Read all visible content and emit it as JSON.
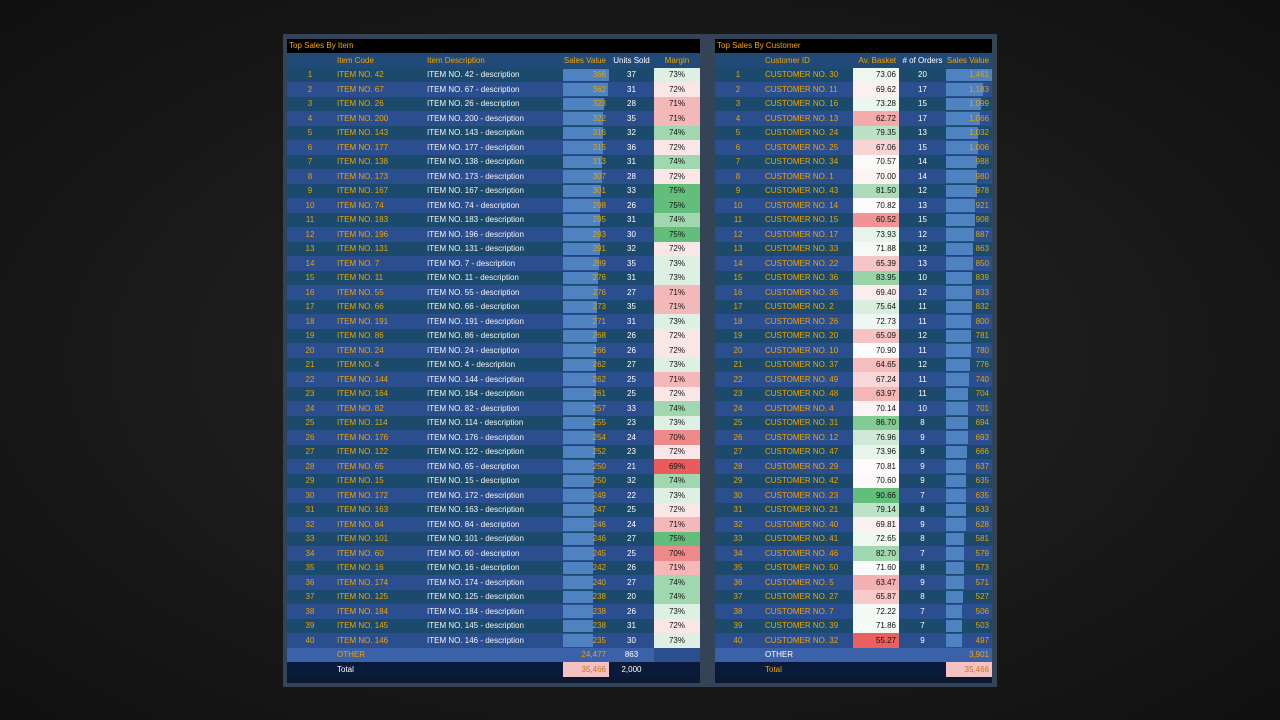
{
  "items_panel": {
    "title": "Top Sales By Item",
    "headers": {
      "code": "Item Code",
      "description": "Item Description",
      "sales_value": "Sales Value",
      "units_sold": "Units Sold",
      "margin": "Margin"
    },
    "rows": [
      {
        "rank": "1",
        "code": "ITEM NO. 42",
        "description": "ITEM NO. 42 - description",
        "sales": "366",
        "units": "37",
        "margin": "73%"
      },
      {
        "rank": "2",
        "code": "ITEM NO. 67",
        "description": "ITEM NO. 67 - description",
        "sales": "362",
        "units": "31",
        "margin": "72%"
      },
      {
        "rank": "3",
        "code": "ITEM NO. 26",
        "description": "ITEM NO. 26 - description",
        "sales": "323",
        "units": "28",
        "margin": "71%"
      },
      {
        "rank": "4",
        "code": "ITEM NO. 200",
        "description": "ITEM NO. 200 - description",
        "sales": "322",
        "units": "35",
        "margin": "71%"
      },
      {
        "rank": "5",
        "code": "ITEM NO. 143",
        "description": "ITEM NO. 143 - description",
        "sales": "316",
        "units": "32",
        "margin": "74%"
      },
      {
        "rank": "6",
        "code": "ITEM NO. 177",
        "description": "ITEM NO. 177 - description",
        "sales": "315",
        "units": "36",
        "margin": "72%"
      },
      {
        "rank": "7",
        "code": "ITEM NO. 138",
        "description": "ITEM NO. 138 - description",
        "sales": "313",
        "units": "31",
        "margin": "74%"
      },
      {
        "rank": "8",
        "code": "ITEM NO. 173",
        "description": "ITEM NO. 173 - description",
        "sales": "307",
        "units": "28",
        "margin": "72%"
      },
      {
        "rank": "9",
        "code": "ITEM NO. 167",
        "description": "ITEM NO. 167 - description",
        "sales": "301",
        "units": "33",
        "margin": "75%"
      },
      {
        "rank": "10",
        "code": "ITEM NO. 74",
        "description": "ITEM NO. 74 - description",
        "sales": "298",
        "units": "26",
        "margin": "75%"
      },
      {
        "rank": "11",
        "code": "ITEM NO. 183",
        "description": "ITEM NO. 183 - description",
        "sales": "295",
        "units": "31",
        "margin": "74%"
      },
      {
        "rank": "12",
        "code": "ITEM NO. 196",
        "description": "ITEM NO. 196 - description",
        "sales": "293",
        "units": "30",
        "margin": "75%"
      },
      {
        "rank": "13",
        "code": "ITEM NO. 131",
        "description": "ITEM NO. 131 - description",
        "sales": "291",
        "units": "32",
        "margin": "72%"
      },
      {
        "rank": "14",
        "code": "ITEM NO. 7",
        "description": "ITEM NO. 7 - description",
        "sales": "289",
        "units": "35",
        "margin": "73%"
      },
      {
        "rank": "15",
        "code": "ITEM NO. 11",
        "description": "ITEM NO. 11 - description",
        "sales": "276",
        "units": "31",
        "margin": "73%"
      },
      {
        "rank": "16",
        "code": "ITEM NO. 55",
        "description": "ITEM NO. 55 - description",
        "sales": "276",
        "units": "27",
        "margin": "71%"
      },
      {
        "rank": "17",
        "code": "ITEM NO. 66",
        "description": "ITEM NO. 66 - description",
        "sales": "273",
        "units": "35",
        "margin": "71%"
      },
      {
        "rank": "18",
        "code": "ITEM NO. 191",
        "description": "ITEM NO. 191 - description",
        "sales": "271",
        "units": "31",
        "margin": "73%"
      },
      {
        "rank": "19",
        "code": "ITEM NO. 86",
        "description": "ITEM NO. 86 - description",
        "sales": "268",
        "units": "26",
        "margin": "72%"
      },
      {
        "rank": "20",
        "code": "ITEM NO. 24",
        "description": "ITEM NO. 24 - description",
        "sales": "266",
        "units": "26",
        "margin": "72%"
      },
      {
        "rank": "21",
        "code": "ITEM NO. 4",
        "description": "ITEM NO. 4 - description",
        "sales": "262",
        "units": "27",
        "margin": "73%"
      },
      {
        "rank": "22",
        "code": "ITEM NO. 144",
        "description": "ITEM NO. 144 - description",
        "sales": "262",
        "units": "25",
        "margin": "71%"
      },
      {
        "rank": "23",
        "code": "ITEM NO. 164",
        "description": "ITEM NO. 164 - description",
        "sales": "261",
        "units": "25",
        "margin": "72%"
      },
      {
        "rank": "24",
        "code": "ITEM NO. 82",
        "description": "ITEM NO. 82 - description",
        "sales": "257",
        "units": "33",
        "margin": "74%"
      },
      {
        "rank": "25",
        "code": "ITEM NO. 114",
        "description": "ITEM NO. 114 - description",
        "sales": "255",
        "units": "23",
        "margin": "73%"
      },
      {
        "rank": "26",
        "code": "ITEM NO. 176",
        "description": "ITEM NO. 176 - description",
        "sales": "254",
        "units": "24",
        "margin": "70%"
      },
      {
        "rank": "27",
        "code": "ITEM NO. 122",
        "description": "ITEM NO. 122 - description",
        "sales": "252",
        "units": "23",
        "margin": "72%"
      },
      {
        "rank": "28",
        "code": "ITEM NO. 65",
        "description": "ITEM NO. 65 - description",
        "sales": "250",
        "units": "21",
        "margin": "69%"
      },
      {
        "rank": "29",
        "code": "ITEM NO. 15",
        "description": "ITEM NO. 15 - description",
        "sales": "250",
        "units": "32",
        "margin": "74%"
      },
      {
        "rank": "30",
        "code": "ITEM NO. 172",
        "description": "ITEM NO. 172 - description",
        "sales": "249",
        "units": "22",
        "margin": "73%"
      },
      {
        "rank": "31",
        "code": "ITEM NO. 163",
        "description": "ITEM NO. 163 - description",
        "sales": "247",
        "units": "25",
        "margin": "72%"
      },
      {
        "rank": "32",
        "code": "ITEM NO. 84",
        "description": "ITEM NO. 84 - description",
        "sales": "246",
        "units": "24",
        "margin": "71%"
      },
      {
        "rank": "33",
        "code": "ITEM NO. 101",
        "description": "ITEM NO. 101 - description",
        "sales": "246",
        "units": "27",
        "margin": "75%"
      },
      {
        "rank": "34",
        "code": "ITEM NO. 60",
        "description": "ITEM NO. 60 - description",
        "sales": "245",
        "units": "25",
        "margin": "70%"
      },
      {
        "rank": "35",
        "code": "ITEM NO. 16",
        "description": "ITEM NO. 16 - description",
        "sales": "242",
        "units": "26",
        "margin": "71%"
      },
      {
        "rank": "36",
        "code": "ITEM NO. 174",
        "description": "ITEM NO. 174 - description",
        "sales": "240",
        "units": "27",
        "margin": "74%"
      },
      {
        "rank": "37",
        "code": "ITEM NO. 125",
        "description": "ITEM NO. 125 - description",
        "sales": "238",
        "units": "20",
        "margin": "74%"
      },
      {
        "rank": "38",
        "code": "ITEM NO. 184",
        "description": "ITEM NO. 184 - description",
        "sales": "238",
        "units": "26",
        "margin": "73%"
      },
      {
        "rank": "39",
        "code": "ITEM NO. 145",
        "description": "ITEM NO. 145 - description",
        "sales": "238",
        "units": "31",
        "margin": "72%"
      },
      {
        "rank": "40",
        "code": "ITEM NO. 146",
        "description": "ITEM NO. 146 - description",
        "sales": "235",
        "units": "30",
        "margin": "73%"
      }
    ],
    "other": {
      "label": "OTHER",
      "sales": "24,477",
      "units": "863"
    },
    "total": {
      "label": "Total",
      "sales": "35,466",
      "units": "2,000"
    }
  },
  "customers_panel": {
    "title": "Top Sales By Customer",
    "headers": {
      "customer": "Customer ID",
      "basket": "Av. Basket",
      "orders": "# of Orders",
      "sales_value": "Sales Value"
    },
    "rows": [
      {
        "rank": "1",
        "customer": "CUSTOMER NO. 30",
        "basket": "73.06",
        "orders": "20",
        "sales": "1,461"
      },
      {
        "rank": "2",
        "customer": "CUSTOMER NO. 11",
        "basket": "69.62",
        "orders": "17",
        "sales": "1,183"
      },
      {
        "rank": "3",
        "customer": "CUSTOMER NO. 16",
        "basket": "73.28",
        "orders": "15",
        "sales": "1,099"
      },
      {
        "rank": "4",
        "customer": "CUSTOMER NO. 13",
        "basket": "62.72",
        "orders": "17",
        "sales": "1,066"
      },
      {
        "rank": "5",
        "customer": "CUSTOMER NO. 24",
        "basket": "79.35",
        "orders": "13",
        "sales": "1,032"
      },
      {
        "rank": "6",
        "customer": "CUSTOMER NO. 25",
        "basket": "67.06",
        "orders": "15",
        "sales": "1,006"
      },
      {
        "rank": "7",
        "customer": "CUSTOMER NO. 34",
        "basket": "70.57",
        "orders": "14",
        "sales": "988"
      },
      {
        "rank": "8",
        "customer": "CUSTOMER NO. 1",
        "basket": "70.00",
        "orders": "14",
        "sales": "980"
      },
      {
        "rank": "9",
        "customer": "CUSTOMER NO. 43",
        "basket": "81.50",
        "orders": "12",
        "sales": "978"
      },
      {
        "rank": "10",
        "customer": "CUSTOMER NO. 14",
        "basket": "70.82",
        "orders": "13",
        "sales": "921"
      },
      {
        "rank": "11",
        "customer": "CUSTOMER NO. 15",
        "basket": "60.52",
        "orders": "15",
        "sales": "908"
      },
      {
        "rank": "12",
        "customer": "CUSTOMER NO. 17",
        "basket": "73.93",
        "orders": "12",
        "sales": "887"
      },
      {
        "rank": "13",
        "customer": "CUSTOMER NO. 33",
        "basket": "71.88",
        "orders": "12",
        "sales": "863"
      },
      {
        "rank": "14",
        "customer": "CUSTOMER NO. 22",
        "basket": "65.39",
        "orders": "13",
        "sales": "850"
      },
      {
        "rank": "15",
        "customer": "CUSTOMER NO. 36",
        "basket": "83.95",
        "orders": "10",
        "sales": "839"
      },
      {
        "rank": "16",
        "customer": "CUSTOMER NO. 35",
        "basket": "69.40",
        "orders": "12",
        "sales": "833"
      },
      {
        "rank": "17",
        "customer": "CUSTOMER NO. 2",
        "basket": "75.64",
        "orders": "11",
        "sales": "832"
      },
      {
        "rank": "18",
        "customer": "CUSTOMER NO. 26",
        "basket": "72.73",
        "orders": "11",
        "sales": "800"
      },
      {
        "rank": "19",
        "customer": "CUSTOMER NO. 20",
        "basket": "65.09",
        "orders": "12",
        "sales": "781"
      },
      {
        "rank": "20",
        "customer": "CUSTOMER NO. 10",
        "basket": "70.90",
        "orders": "11",
        "sales": "780"
      },
      {
        "rank": "21",
        "customer": "CUSTOMER NO. 37",
        "basket": "64.65",
        "orders": "12",
        "sales": "776"
      },
      {
        "rank": "22",
        "customer": "CUSTOMER NO. 49",
        "basket": "67.24",
        "orders": "11",
        "sales": "740"
      },
      {
        "rank": "23",
        "customer": "CUSTOMER NO. 48",
        "basket": "63.97",
        "orders": "11",
        "sales": "704"
      },
      {
        "rank": "24",
        "customer": "CUSTOMER NO. 4",
        "basket": "70.14",
        "orders": "10",
        "sales": "701"
      },
      {
        "rank": "25",
        "customer": "CUSTOMER NO. 31",
        "basket": "86.70",
        "orders": "8",
        "sales": "694"
      },
      {
        "rank": "26",
        "customer": "CUSTOMER NO. 12",
        "basket": "76.96",
        "orders": "9",
        "sales": "693"
      },
      {
        "rank": "27",
        "customer": "CUSTOMER NO. 47",
        "basket": "73.96",
        "orders": "9",
        "sales": "666"
      },
      {
        "rank": "28",
        "customer": "CUSTOMER NO. 29",
        "basket": "70.81",
        "orders": "9",
        "sales": "637"
      },
      {
        "rank": "29",
        "customer": "CUSTOMER NO. 42",
        "basket": "70.60",
        "orders": "9",
        "sales": "635"
      },
      {
        "rank": "30",
        "customer": "CUSTOMER NO. 23",
        "basket": "90.66",
        "orders": "7",
        "sales": "635"
      },
      {
        "rank": "31",
        "customer": "CUSTOMER NO. 21",
        "basket": "79.14",
        "orders": "8",
        "sales": "633"
      },
      {
        "rank": "32",
        "customer": "CUSTOMER NO. 40",
        "basket": "69.81",
        "orders": "9",
        "sales": "628"
      },
      {
        "rank": "33",
        "customer": "CUSTOMER NO. 41",
        "basket": "72.65",
        "orders": "8",
        "sales": "581"
      },
      {
        "rank": "34",
        "customer": "CUSTOMER NO. 46",
        "basket": "82.70",
        "orders": "7",
        "sales": "579"
      },
      {
        "rank": "35",
        "customer": "CUSTOMER NO. 50",
        "basket": "71.60",
        "orders": "8",
        "sales": "573"
      },
      {
        "rank": "36",
        "customer": "CUSTOMER NO. 5",
        "basket": "63.47",
        "orders": "9",
        "sales": "571"
      },
      {
        "rank": "37",
        "customer": "CUSTOMER NO. 27",
        "basket": "65.87",
        "orders": "8",
        "sales": "527"
      },
      {
        "rank": "38",
        "customer": "CUSTOMER NO. 7",
        "basket": "72.22",
        "orders": "7",
        "sales": "506"
      },
      {
        "rank": "39",
        "customer": "CUSTOMER NO. 39",
        "basket": "71.86",
        "orders": "7",
        "sales": "503"
      },
      {
        "rank": "40",
        "customer": "CUSTOMER NO. 32",
        "basket": "55.27",
        "orders": "9",
        "sales": "497"
      }
    ],
    "other": {
      "label": "OTHER",
      "sales": "3,901"
    },
    "total": {
      "label": "Total",
      "sales": "35,466"
    }
  }
}
